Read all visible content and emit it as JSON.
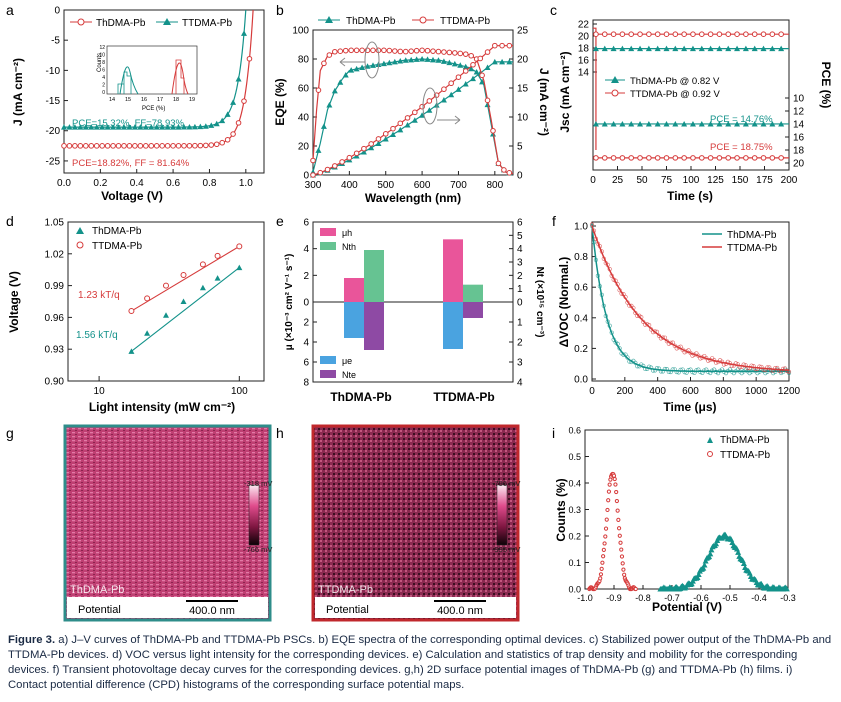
{
  "colors": {
    "teal": "#13928a",
    "red": "#d63b3b",
    "pink": "#e9559a",
    "green": "#66c392",
    "blue": "#4aa3e0",
    "purple": "#8e4aa4",
    "frame_g": "#2e8d8a",
    "frame_h": "#c0282c"
  },
  "panels": {
    "a": {
      "letter": "a",
      "xlabel": "Voltage (V)",
      "ylabel": "J (mA cm⁻²)",
      "legend": [
        "ThDMA-Pb",
        "TTDMA-Pb"
      ],
      "xticks": [
        "0.0",
        "0.2",
        "0.4",
        "0.6",
        "0.8",
        "1.0"
      ],
      "yticks": [
        "0",
        "-5",
        "-10",
        "-15",
        "-20",
        "-25"
      ],
      "ann_teal": "PCE=15.32%,   FF=78.93%",
      "ann_red": "PCE=18.82%,   FF = 81.64%",
      "inset": {
        "ylabel": "Counts",
        "xlabel": "PCE (%)",
        "xticks": [
          "14",
          "15",
          "16",
          "17",
          "18",
          "19"
        ],
        "yticks": [
          "0",
          "2",
          "4",
          "6",
          "8",
          "10",
          "12"
        ]
      }
    },
    "b": {
      "letter": "b",
      "xlabel": "Wavelength (nm)",
      "ylabel": "EQE (%)",
      "ylabel2": "J (mA cm⁻²)",
      "legend": [
        "ThDMA-Pb",
        "TTDMA-Pb"
      ],
      "xticks": [
        "300",
        "400",
        "500",
        "600",
        "700",
        "800"
      ],
      "yticks": [
        "0",
        "20",
        "40",
        "60",
        "80",
        "100"
      ],
      "yticks2": [
        "0",
        "5",
        "10",
        "15",
        "20",
        "25"
      ]
    },
    "c": {
      "letter": "c",
      "xlabel": "Time (s)",
      "ylabel": "Jsc (mA cm⁻²)",
      "ylabel2": "PCE (%)",
      "legend": [
        "ThDMA-Pb @ 0.82 V",
        "TTDMA-Pb @ 0.92 V"
      ],
      "xticks": [
        "0",
        "25",
        "50",
        "75",
        "100",
        "125",
        "150",
        "175",
        "200"
      ],
      "yticks": [
        "22",
        "20",
        "18",
        "16",
        "14"
      ],
      "yticks2_upper": [
        "10",
        "12",
        "14",
        "16",
        "18",
        "20"
      ],
      "ann_teal": "PCE = 14.76%",
      "ann_red": "PCE = 18.75%"
    },
    "d": {
      "letter": "d",
      "xlabel": "Light intensity (mW cm⁻²)",
      "ylabel": "Voltage (V)",
      "legend": [
        "ThDMA-Pb",
        "TTDMA-Pb"
      ],
      "xticks": [
        "10",
        "100"
      ],
      "yticks": [
        "0.90",
        "0.93",
        "0.96",
        "0.99",
        "1.02",
        "1.05"
      ],
      "ann_red": "1.23 kT/q",
      "ann_teal": "1.56 kT/q"
    },
    "e": {
      "letter": "e",
      "ylabel": "μ (×10⁻³ cm² V⁻¹ s⁻¹)",
      "ylabel2": "Nt (×10¹⁵ cm⁻³)",
      "legend_top": [
        "μh",
        "Nth"
      ],
      "legend_bottom": [
        "μe",
        "Nte"
      ],
      "categories": [
        "ThDMA-Pb",
        "TTDMA-Pb"
      ],
      "yticks_top": [
        "0",
        "2",
        "4",
        "6"
      ],
      "yticks_bottom": [
        "2",
        "4",
        "6",
        "8"
      ],
      "yticks2_top": [
        "0",
        "1",
        "2",
        "3",
        "4",
        "5",
        "6"
      ],
      "yticks2_bottom": [
        "1",
        "2",
        "3",
        "4"
      ]
    },
    "f": {
      "letter": "f",
      "xlabel": "Time (μs)",
      "ylabel": "ΔVOC (Normal.)",
      "legend": [
        "ThDMA-Pb",
        "TTDMA-Pb"
      ],
      "xticks": [
        "0",
        "200",
        "400",
        "600",
        "800",
        "1000",
        "1200"
      ],
      "yticks": [
        "0.0",
        "0.2",
        "0.4",
        "0.6",
        "0.8",
        "1.0"
      ]
    },
    "g": {
      "letter": "g",
      "film": "ThDMA-Pb",
      "cb_max": "-318 mV",
      "cb_min": "-766 mV",
      "label": "Potential",
      "scale": "400.0 nm"
    },
    "h": {
      "letter": "h",
      "film": "TTDMA-Pb",
      "cb_max": "-796 mV",
      "cb_min": "-995 mV",
      "label": "Potential",
      "scale": "400.0 nm"
    },
    "i": {
      "letter": "i",
      "xlabel": "Potential (V)",
      "ylabel": "Counts (%)",
      "legend": [
        "ThDMA-Pb",
        "TTDMA-Pb"
      ],
      "xticks": [
        "-1.0",
        "-0.9",
        "-0.8",
        "-0.7",
        "-0.6",
        "-0.5",
        "-0.4",
        "-0.3"
      ],
      "yticks": [
        "0.0",
        "0.1",
        "0.2",
        "0.3",
        "0.4",
        "0.5",
        "0.6"
      ]
    }
  },
  "caption": {
    "lead": "Figure 3.",
    "text": " a) J–V curves of ThDMA-Pb and TTDMA-Pb PSCs. b) EQE spectra of the corresponding optimal devices. c) Stabilized power output of the ThDMA-Pb and TTDMA-Pb devices. d) VOC versus light intensity for the corresponding devices. e) Calculation and statistics of trap density and mobility for the corresponding devices. f) Transient photovoltage decay curves for the corresponding devices. g,h) 2D surface potential images of ThDMA-Pb (g) and TTDMA-Pb (h) films. i) Contact potential difference (CPD) histograms of the corresponding surface potential maps."
  },
  "chart_data": [
    {
      "panel": "a",
      "type": "line",
      "x_label": "Voltage (V)",
      "y_label": "J (mA cm⁻²)",
      "xlim": [
        0,
        1.1
      ],
      "ylim": [
        -27,
        0
      ],
      "series": [
        {
          "name": "ThDMA-Pb",
          "voc": 1.0,
          "jsc": -19.4
        },
        {
          "name": "TTDMA-Pb",
          "voc": 1.04,
          "jsc": -22.5
        }
      ]
    },
    {
      "panel": "b",
      "type": "line",
      "x_label": "Wavelength (nm)",
      "y_label": "EQE (%)",
      "xlim": [
        300,
        850
      ],
      "ylim": [
        0,
        100
      ],
      "series": [
        {
          "name": "ThDMA-Pb",
          "x": [
            300,
            320,
            340,
            360,
            380,
            400,
            450,
            500,
            550,
            600,
            650,
            700,
            730,
            750,
            770,
            790,
            810,
            830,
            850
          ],
          "y": [
            2,
            22,
            45,
            58,
            66,
            72,
            75,
            77,
            79,
            80,
            79,
            76,
            74,
            71,
            62,
            35,
            8,
            2,
            1
          ]
        },
        {
          "name": "TTDMA-Pb",
          "x": [
            300,
            310,
            320,
            340,
            360,
            400,
            450,
            500,
            550,
            600,
            650,
            700,
            730,
            750,
            770,
            790,
            810,
            830,
            850
          ],
          "y": [
            10,
            45,
            72,
            82,
            85,
            86,
            86,
            86,
            85,
            86,
            85,
            84,
            83,
            80,
            65,
            38,
            8,
            2,
            1
          ]
        }
      ]
    },
    {
      "panel": "c",
      "type": "line",
      "x_label": "Time (s)",
      "xlim": [
        0,
        200
      ],
      "series": [
        {
          "name": "ThDMA-Pb @ 0.82 V",
          "jsc": 17.9,
          "pce": 14.76
        },
        {
          "name": "TTDMA-Pb @ 0.92 V",
          "jsc": 20.3,
          "pce": 18.75
        }
      ]
    },
    {
      "panel": "d",
      "type": "scatter",
      "x_label": "Light intensity (mW cm⁻²)",
      "y_label": "Voltage (V)",
      "ylim": [
        0.9,
        1.05
      ],
      "series": [
        {
          "name": "ThDMA-Pb",
          "x": [
            17,
            22,
            30,
            40,
            55,
            70,
            100
          ],
          "y": [
            0.928,
            0.945,
            0.962,
            0.975,
            0.988,
            0.997,
            1.007
          ]
        },
        {
          "name": "TTDMA-Pb",
          "x": [
            17,
            22,
            30,
            40,
            55,
            70,
            100
          ],
          "y": [
            0.966,
            0.978,
            0.99,
            1.0,
            1.01,
            1.018,
            1.027
          ]
        }
      ]
    },
    {
      "panel": "e",
      "type": "bar",
      "categories": [
        "ThDMA-Pb",
        "TTDMA-Pb"
      ],
      "series": [
        {
          "name": "μh",
          "values": [
            1.8,
            4.7
          ]
        },
        {
          "name": "Nth",
          "values": [
            3.9,
            1.3
          ]
        },
        {
          "name": "μe",
          "values": [
            3.6,
            4.7
          ]
        },
        {
          "name": "Nte",
          "values": [
            2.4,
            0.8
          ]
        }
      ]
    },
    {
      "panel": "f",
      "type": "line",
      "x_label": "Time (μs)",
      "y_label": "ΔVOC (Normal.)",
      "xlim": [
        0,
        1200
      ],
      "ylim": [
        0,
        1
      ],
      "series": [
        {
          "name": "ThDMA-Pb",
          "tau": 90,
          "offset": 0.05
        },
        {
          "name": "TTDMA-Pb",
          "tau": 300,
          "offset": 0.04
        }
      ]
    },
    {
      "panel": "i",
      "type": "scatter",
      "x_label": "Potential (V)",
      "y_label": "Counts (%)",
      "xlim": [
        -1.0,
        -0.3
      ],
      "ylim": [
        0,
        0.6
      ],
      "series": [
        {
          "name": "ThDMA-Pb",
          "center": -0.52,
          "peak": 0.2,
          "width": 0.055
        },
        {
          "name": "TTDMA-Pb",
          "center": -0.905,
          "peak": 0.44,
          "width": 0.02
        }
      ]
    }
  ]
}
